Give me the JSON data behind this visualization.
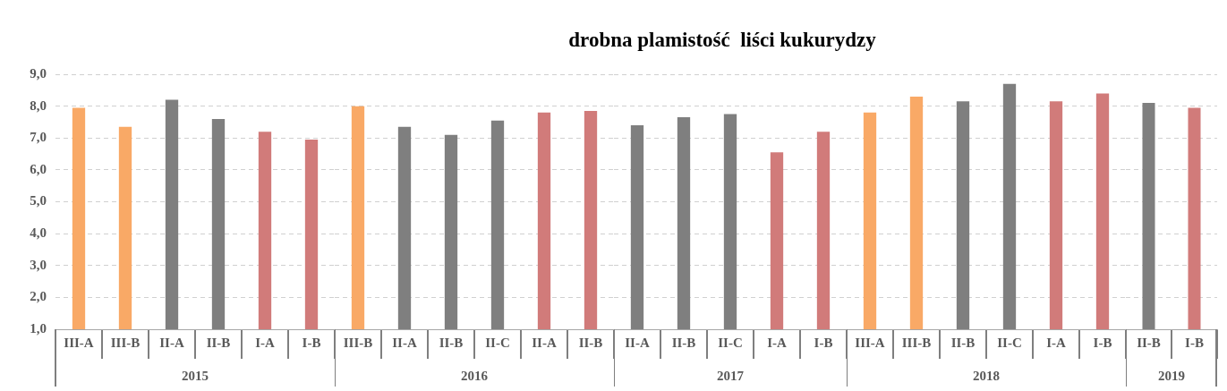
{
  "chart_data": [
    {
      "type": "bar",
      "xlabel": "2015",
      "categories": [
        "III-A",
        "III-B",
        "II-A",
        "II-B",
        "I-A",
        "I-B"
      ],
      "values": [
        7.95,
        7.35,
        8.2,
        7.6,
        7.2,
        6.95
      ],
      "colors": [
        "#f9a966",
        "#f9a966",
        "#7f7f7f",
        "#7f7f7f",
        "#d17b7a",
        "#d17b7a"
      ],
      "ylim": [
        1,
        9
      ],
      "yticks": [
        {
          "value": 1,
          "label": "1,0"
        },
        {
          "value": 2,
          "label": "2,0"
        },
        {
          "value": 3,
          "label": "3,0"
        },
        {
          "value": 4,
          "label": "4,0"
        },
        {
          "value": 5,
          "label": "5,0"
        },
        {
          "value": 6,
          "label": "6,0"
        },
        {
          "value": 7,
          "label": "7,0"
        },
        {
          "value": 8,
          "label": "8,0"
        },
        {
          "value": 9,
          "label": "9,0"
        }
      ],
      "grid": "y",
      "legend": false
    },
    {
      "type": "bar",
      "xlabel": "2016",
      "categories": [
        "III-B",
        "II-A",
        "II-B",
        "II-C",
        "II-A",
        "II-B"
      ],
      "values": [
        8.0,
        7.35,
        7.1,
        7.55,
        7.8,
        7.85
      ],
      "colors": [
        "#f9a966",
        "#7f7f7f",
        "#7f7f7f",
        "#7f7f7f",
        "#d17b7a",
        "#d17b7a"
      ],
      "ylim": [
        1,
        9
      ],
      "grid": "y",
      "legend": false,
      "tick_labels": "x"
    },
    {
      "type": "bar",
      "title": "drobna plamistość  liści kukurydzy",
      "xlabel": "2017",
      "categories": [
        "II-A",
        "II-B",
        "II-C",
        "I-A",
        "I-B"
      ],
      "values": [
        7.4,
        7.65,
        7.75,
        6.55,
        7.2
      ],
      "colors": [
        "#7f7f7f",
        "#7f7f7f",
        "#7f7f7f",
        "#d17b7a",
        "#d17b7a"
      ],
      "ylim": [
        1,
        9
      ],
      "grid": "y",
      "legend": false,
      "tick_labels": "x"
    },
    {
      "type": "bar",
      "xlabel": "2018",
      "categories": [
        "III-A",
        "III-B",
        "II-B",
        "II-C",
        "I-A",
        "I-B"
      ],
      "values": [
        7.8,
        8.3,
        8.15,
        8.7,
        8.15,
        8.4
      ],
      "colors": [
        "#f9a966",
        "#f9a966",
        "#7f7f7f",
        "#7f7f7f",
        "#d17b7a",
        "#d17b7a"
      ],
      "ylim": [
        1,
        9
      ],
      "grid": "y",
      "legend": false,
      "tick_labels": "x"
    },
    {
      "type": "bar",
      "xlabel": "2019",
      "categories": [
        "II-B",
        "I-B"
      ],
      "values": [
        8.1,
        7.95
      ],
      "colors": [
        "#7f7f7f",
        "#d17b7a"
      ],
      "ylim": [
        1,
        9
      ],
      "grid": "y",
      "legend": false,
      "tick_labels": "x"
    }
  ]
}
